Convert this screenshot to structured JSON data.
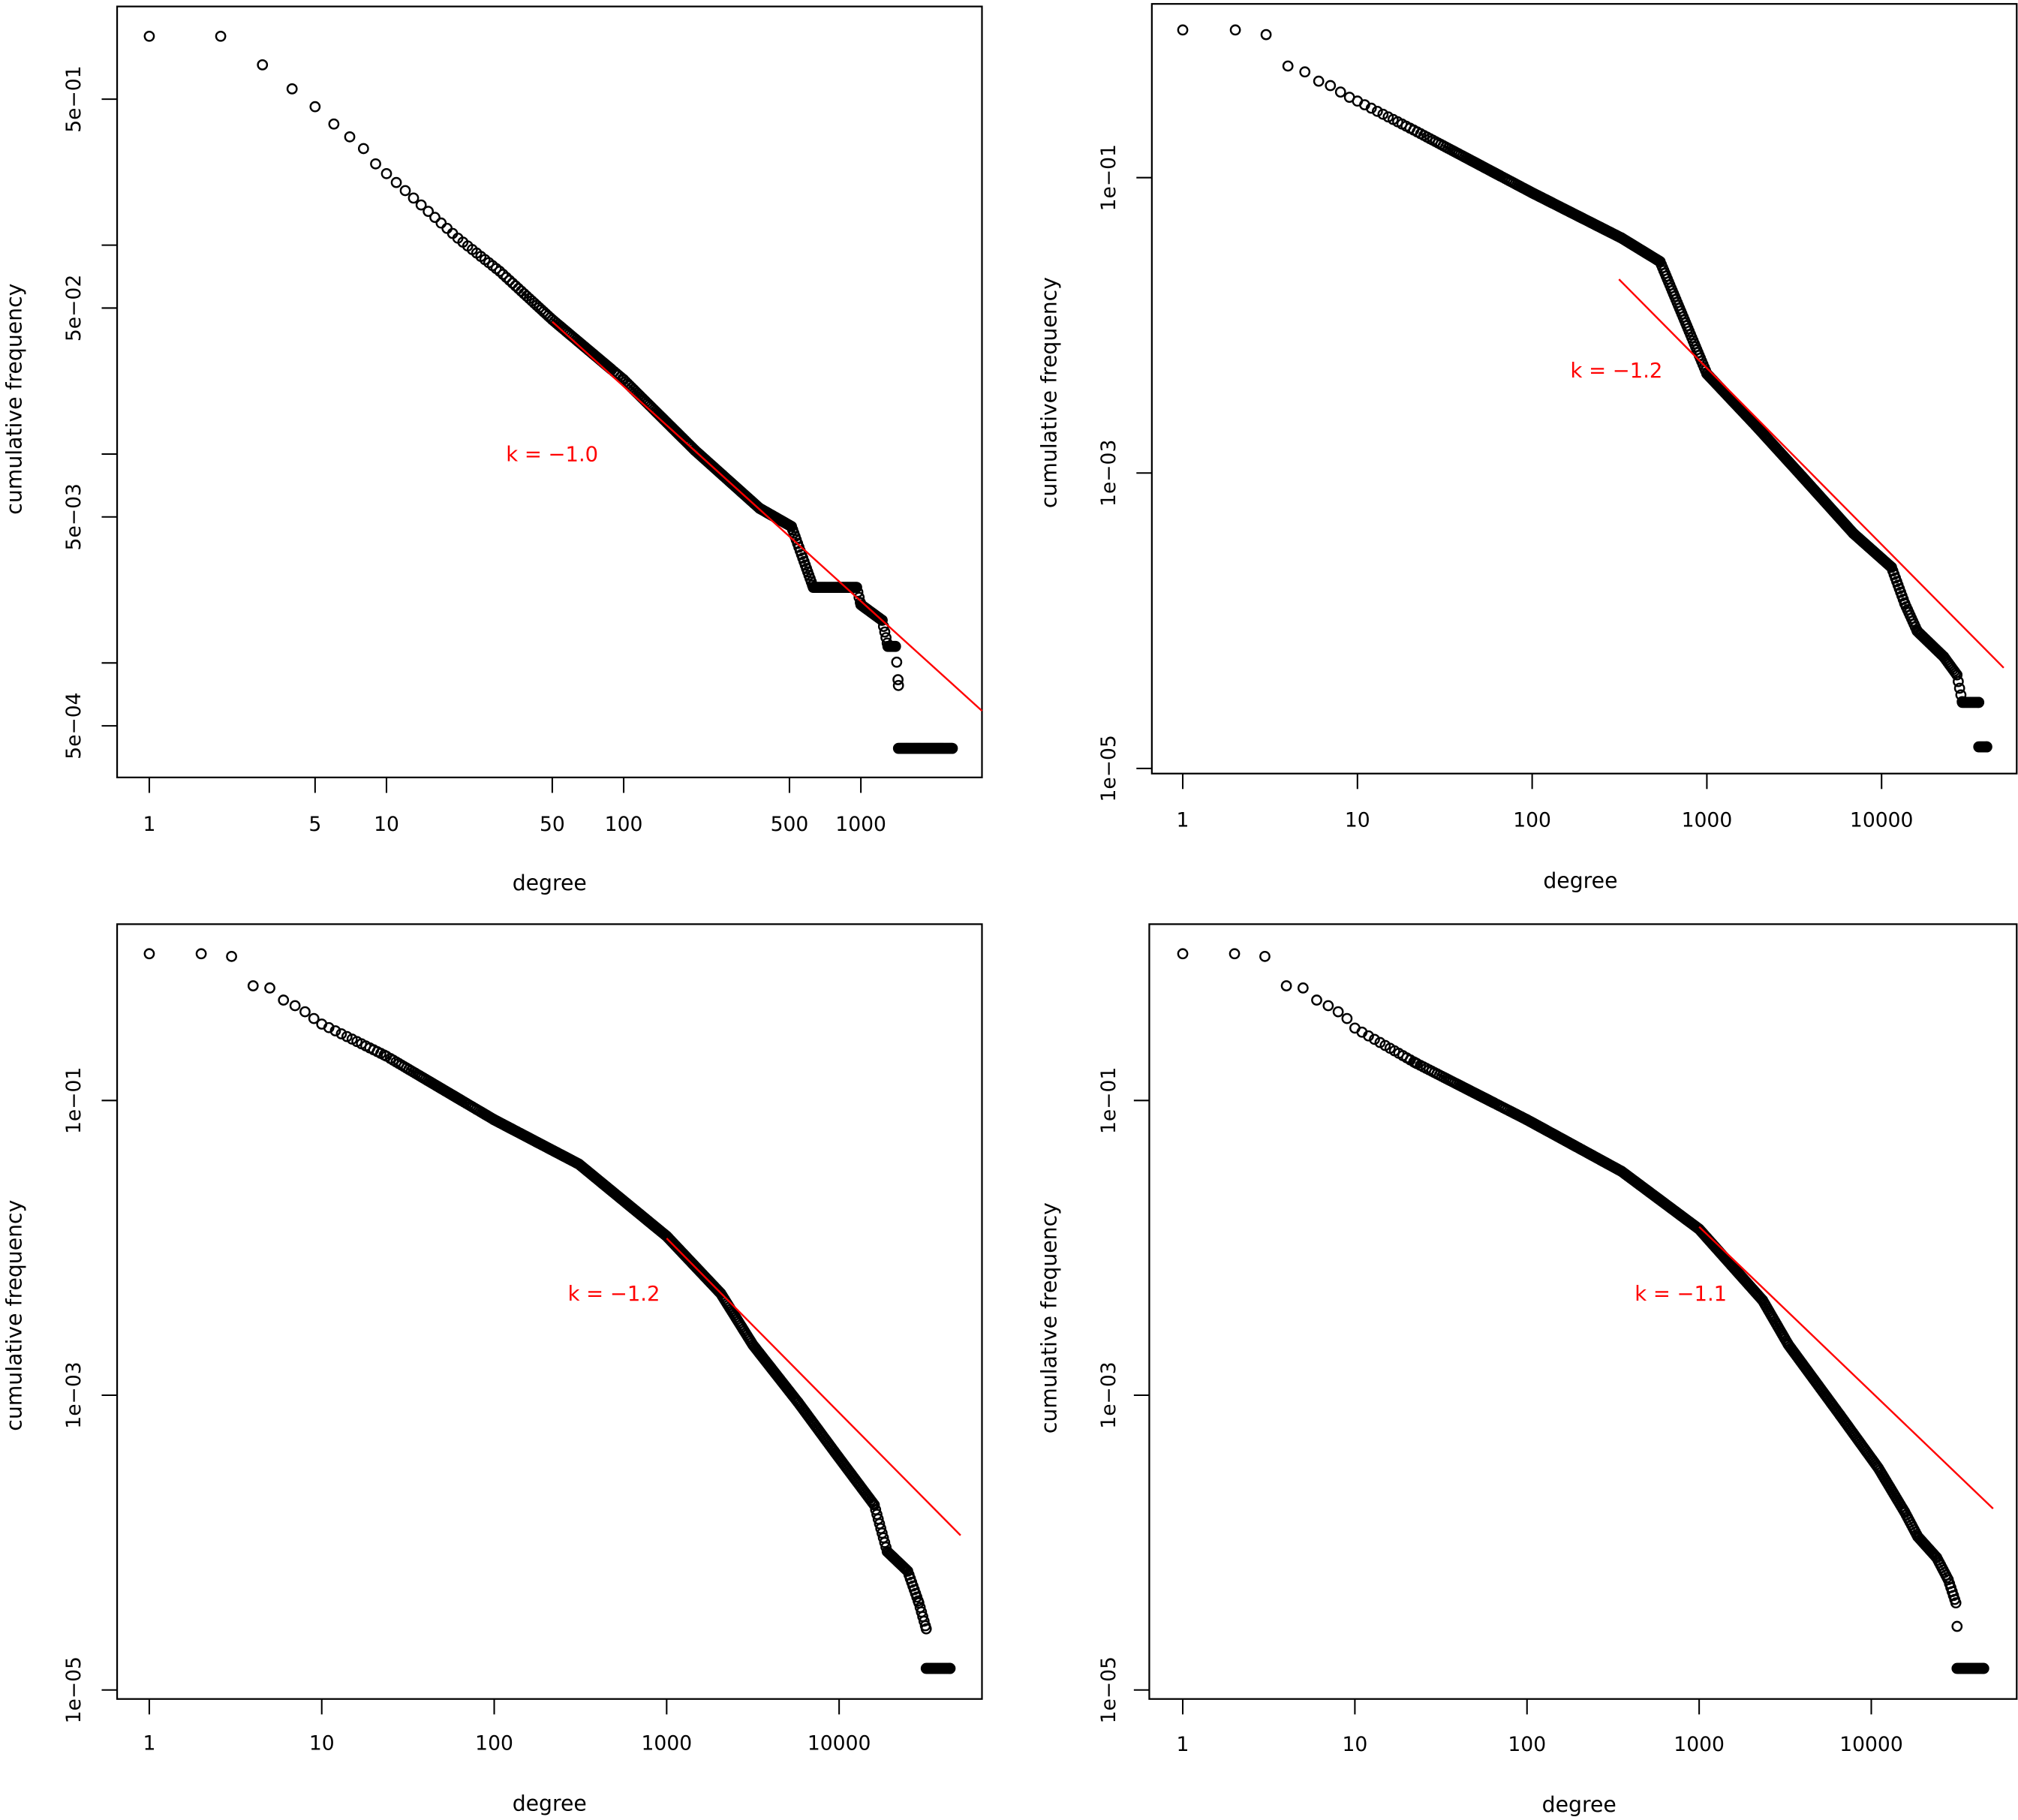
{
  "chart_data": [
    {
      "type": "scatter",
      "panel": "top-left",
      "xlabel": "degree",
      "ylabel": "cumulative frequency",
      "xscale": "log",
      "yscale": "log",
      "xlim": [
        0.73,
        3240
      ],
      "ylim": [
        0.00028,
        1.39
      ],
      "x_ticks": [
        1,
        5,
        10,
        50,
        100,
        500,
        1000
      ],
      "x_tick_labels": [
        "1",
        "5",
        "10",
        "50",
        "100",
        "500",
        "1000"
      ],
      "y_ticks": [
        0.5,
        0.1,
        0.05,
        0.01,
        0.005,
        0.001,
        0.0005
      ],
      "y_tick_labels": [
        "5e−01",
        "",
        "5e−02",
        "",
        "5e−03",
        "",
        "5e−04"
      ],
      "points": [
        [
          1,
          1.0
        ],
        [
          2,
          1.0
        ],
        [
          3,
          0.73
        ],
        [
          4,
          0.56
        ],
        [
          5,
          0.46
        ],
        [
          6,
          0.38
        ],
        [
          7,
          0.33
        ],
        [
          8,
          0.29
        ],
        [
          9,
          0.245
        ],
        [
          10,
          0.22
        ],
        [
          20,
          0.108
        ],
        [
          30,
          0.075
        ],
        [
          50,
          0.044
        ],
        [
          100,
          0.0227
        ],
        [
          200,
          0.0104
        ],
        [
          374,
          0.0055
        ],
        [
          510,
          0.0045
        ],
        [
          630,
          0.0023
        ],
        [
          960,
          0.0023
        ],
        [
          1000,
          0.0019
        ],
        [
          1230,
          0.0016
        ],
        [
          1300,
          0.0012
        ],
        [
          1400,
          0.0012
        ],
        [
          1440,
          0.00078
        ],
        [
          1441,
          0.00039
        ],
        [
          2430,
          0.00039
        ]
      ],
      "fit_line": {
        "k": -1.0,
        "from": [
          50,
          0.043
        ],
        "to": [
          3240,
          0.00059
        ],
        "color": "#ff0000"
      },
      "annotation": "k = −1.0"
    },
    {
      "type": "scatter",
      "panel": "top-right",
      "xlabel": "degree",
      "ylabel": "cumulative frequency",
      "xscale": "log",
      "yscale": "log",
      "xlim": [
        0.67,
        60000
      ],
      "ylim": [
        9.2e-06,
        1.5
      ],
      "x_ticks": [
        1,
        10,
        100,
        1000,
        10000
      ],
      "x_tick_labels": [
        "1",
        "10",
        "100",
        "1000",
        "10000"
      ],
      "y_ticks": [
        0.1,
        0.001,
        1e-05
      ],
      "y_tick_labels": [
        "1e−01",
        "1e−03",
        "1e−05"
      ],
      "points": [
        [
          1,
          1.0
        ],
        [
          2,
          1.0
        ],
        [
          3,
          0.93
        ],
        [
          4,
          0.57
        ],
        [
          5,
          0.52
        ],
        [
          6,
          0.45
        ],
        [
          7,
          0.42
        ],
        [
          8,
          0.38
        ],
        [
          9,
          0.35
        ],
        [
          10,
          0.33
        ],
        [
          21,
          0.21
        ],
        [
          100,
          0.079
        ],
        [
          325,
          0.039
        ],
        [
          540,
          0.027
        ],
        [
          1000,
          0.0047
        ],
        [
          1900,
          0.0021
        ],
        [
          3500,
          0.00095
        ],
        [
          6900,
          0.00039
        ],
        [
          11400,
          0.00023
        ],
        [
          13600,
          0.00013
        ],
        [
          16000,
          8.5e-05
        ],
        [
          22700,
          5.7e-05
        ],
        [
          27000,
          4.3e-05
        ],
        [
          29000,
          2.8e-05
        ],
        [
          36000,
          2.8e-05
        ],
        [
          36001,
          1.4e-05
        ],
        [
          40000,
          1.4e-05
        ]
      ],
      "fit_line": {
        "k": -1.2,
        "from": [
          314,
          0.0205
        ],
        "to": [
          50000,
          4.8e-05
        ],
        "color": "#ff0000"
      },
      "annotation": "k = −1.2"
    },
    {
      "type": "scatter",
      "panel": "bottom-left",
      "xlabel": "degree",
      "ylabel": "cumulative frequency",
      "xscale": "log",
      "yscale": "log",
      "xlim": [
        0.65,
        67000
      ],
      "ylim": [
        8.7e-06,
        1.57
      ],
      "x_ticks": [
        1,
        10,
        100,
        1000,
        10000
      ],
      "x_tick_labels": [
        "1",
        "10",
        "100",
        "1000",
        "10000"
      ],
      "y_ticks": [
        0.1,
        0.001,
        1e-05
      ],
      "y_tick_labels": [
        "1e−01",
        "1e−03",
        "1e−05"
      ],
      "points": [
        [
          1,
          0.99
        ],
        [
          2,
          0.99
        ],
        [
          3,
          0.95
        ],
        [
          4,
          0.6
        ],
        [
          5,
          0.58
        ],
        [
          6,
          0.48
        ],
        [
          7,
          0.44
        ],
        [
          8,
          0.4
        ],
        [
          9,
          0.36
        ],
        [
          10,
          0.33
        ],
        [
          23.7,
          0.2
        ],
        [
          100,
          0.074
        ],
        [
          310,
          0.037
        ],
        [
          1000,
          0.012
        ],
        [
          2060,
          0.0049
        ],
        [
          3160,
          0.0022
        ],
        [
          5800,
          0.00089
        ],
        [
          9600,
          0.0004
        ],
        [
          16000,
          0.00018
        ],
        [
          19000,
          8.7e-05
        ],
        [
          25000,
          6.4e-05
        ],
        [
          29000,
          3.9e-05
        ],
        [
          32000,
          2.6e-05
        ],
        [
          32001,
          1.4e-05
        ],
        [
          44000,
          1.4e-05
        ]
      ],
      "fit_line": {
        "k": -1.2,
        "from": [
          1000,
          0.0116
        ],
        "to": [
          50600,
          0.000112
        ],
        "color": "#ff0000"
      },
      "annotation": "k = −1.2"
    },
    {
      "type": "scatter",
      "panel": "bottom-right",
      "xlabel": "degree",
      "ylabel": "cumulative frequency",
      "xscale": "log",
      "yscale": "log",
      "xlim": [
        0.64,
        70000
      ],
      "ylim": [
        8.7e-06,
        1.57
      ],
      "x_ticks": [
        1,
        10,
        100,
        1000,
        10000
      ],
      "x_tick_labels": [
        "1",
        "10",
        "100",
        "1000",
        "10000"
      ],
      "y_ticks": [
        0.1,
        0.001,
        1e-05
      ],
      "y_tick_labels": [
        "1e−01",
        "1e−03",
        "1e−05"
      ],
      "points": [
        [
          1,
          0.99
        ],
        [
          2,
          0.99
        ],
        [
          3,
          0.95
        ],
        [
          4,
          0.6
        ],
        [
          5,
          0.58
        ],
        [
          6,
          0.48
        ],
        [
          7,
          0.44
        ],
        [
          8,
          0.4
        ],
        [
          9,
          0.36
        ],
        [
          10,
          0.31
        ],
        [
          22.5,
          0.18
        ],
        [
          100,
          0.074
        ],
        [
          355,
          0.033
        ],
        [
          1000,
          0.0134
        ],
        [
          2340,
          0.0044
        ],
        [
          3300,
          0.0022
        ],
        [
          6600,
          0.00073
        ],
        [
          11000,
          0.00032
        ],
        [
          15700,
          0.00016
        ],
        [
          18600,
          0.00011
        ],
        [
          24000,
          7.9e-05
        ],
        [
          28000,
          5.6e-05
        ],
        [
          31000,
          3.9e-05
        ],
        [
          31500,
          2.7e-05
        ],
        [
          31501,
          1.4e-05
        ],
        [
          45000,
          1.4e-05
        ]
      ],
      "fit_line": {
        "k": -1.1,
        "from": [
          1000,
          0.0139
        ],
        "to": [
          51000,
          0.00017
        ],
        "color": "#ff0000"
      },
      "annotation": "k = −1.1"
    }
  ]
}
